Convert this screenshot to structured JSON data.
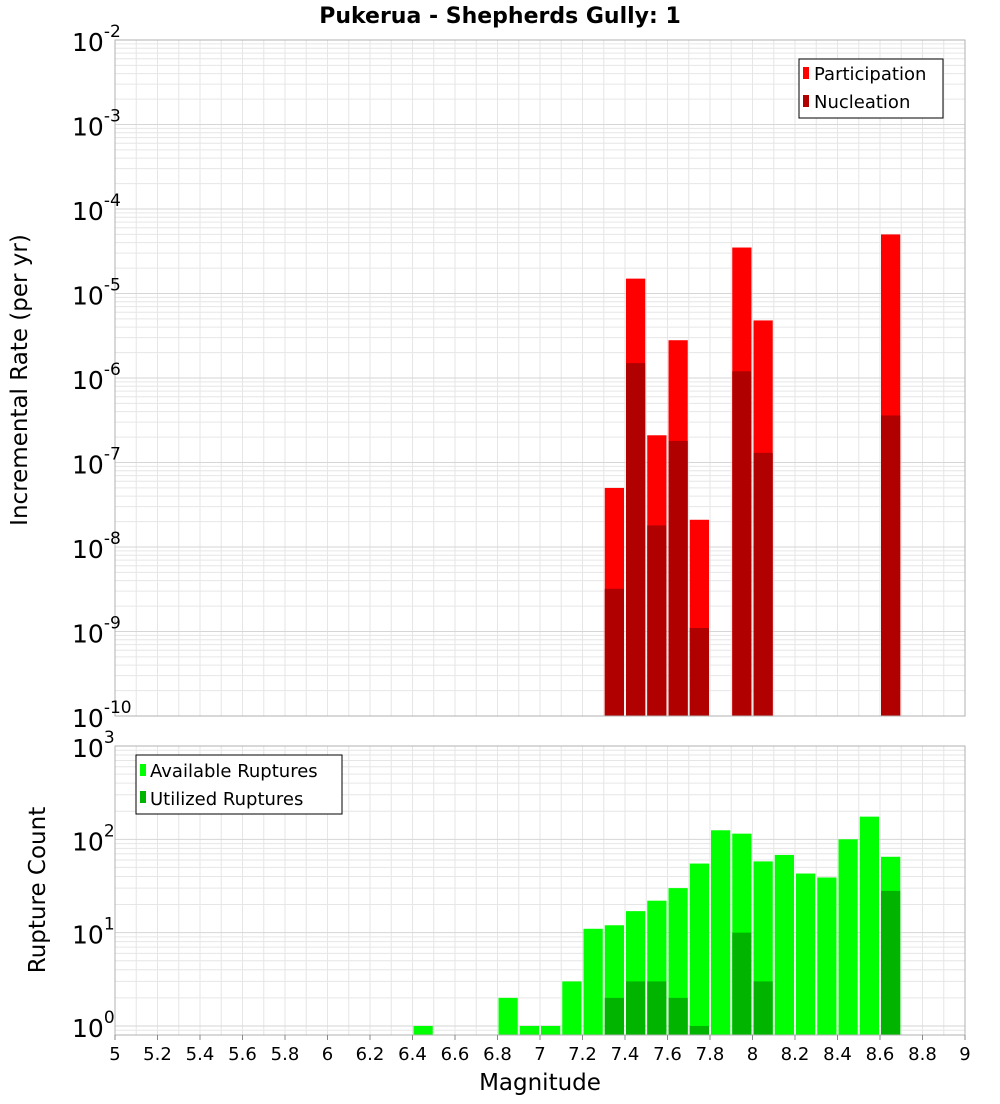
{
  "title": "Pukerua - Shepherds Gully: 1",
  "colors": {
    "participation": "#ff0000",
    "nucleation": "#b00000",
    "available": "#00ff00",
    "utilized": "#00b400",
    "grid": "#e6e6e6",
    "frame": "#b0b0b0"
  },
  "chart_data": [
    {
      "type": "bar",
      "ylabel": "Incremental Rate (per yr)",
      "xlabel": "",
      "yscale": "log",
      "ylim": [
        1e-10,
        0.01
      ],
      "xlim": [
        5,
        9
      ],
      "y_tick_exponents": [
        -10,
        -9,
        -8,
        -7,
        -6,
        -5,
        -4,
        -3,
        -2
      ],
      "bar_width": 0.1,
      "legend": {
        "position": "top-right",
        "entries": [
          "Participation",
          "Nucleation"
        ]
      },
      "series": [
        {
          "name": "Participation",
          "x": [
            7.35,
            7.45,
            7.55,
            7.65,
            7.75,
            7.95,
            8.05,
            8.65
          ],
          "values": [
            5e-08,
            1.5e-05,
            2.1e-07,
            2.8e-06,
            2.1e-08,
            3.5e-05,
            4.8e-06,
            5e-05
          ]
        },
        {
          "name": "Nucleation",
          "x": [
            7.35,
            7.45,
            7.55,
            7.65,
            7.75,
            7.95,
            8.05,
            8.65
          ],
          "values": [
            3.2e-09,
            1.5e-06,
            1.8e-08,
            1.8e-07,
            1.1e-09,
            1.2e-06,
            1.3e-07,
            3.6e-07
          ]
        }
      ]
    },
    {
      "type": "bar",
      "ylabel": "Rupture Count",
      "xlabel": "Magnitude",
      "yscale": "log",
      "ylim": [
        0.8,
        1000
      ],
      "xlim": [
        5,
        9
      ],
      "y_tick_exponents": [
        0,
        1,
        2,
        3
      ],
      "x_ticks": [
        "5",
        "5.2",
        "5.4",
        "5.6",
        "5.8",
        "6",
        "6.2",
        "6.4",
        "6.6",
        "6.8",
        "7",
        "7.2",
        "7.4",
        "7.6",
        "7.8",
        "8",
        "8.2",
        "8.4",
        "8.6",
        "8.8",
        "9"
      ],
      "bar_width": 0.1,
      "legend": {
        "position": "top-left",
        "entries": [
          "Available Ruptures",
          "Utilized Ruptures"
        ]
      },
      "series": [
        {
          "name": "Available Ruptures",
          "x": [
            6.45,
            6.85,
            6.95,
            7.05,
            7.15,
            7.25,
            7.35,
            7.45,
            7.55,
            7.65,
            7.75,
            7.85,
            7.95,
            8.05,
            8.15,
            8.25,
            8.35,
            8.45,
            8.55,
            8.65
          ],
          "values": [
            1,
            2,
            1,
            1,
            3,
            11,
            12,
            17,
            22,
            30,
            55,
            125,
            115,
            58,
            68,
            43,
            39,
            100,
            175,
            65
          ]
        },
        {
          "name": "Utilized Ruptures",
          "x": [
            7.35,
            7.45,
            7.55,
            7.65,
            7.75,
            7.95,
            8.05,
            8.65
          ],
          "values": [
            2,
            3,
            3,
            2,
            1,
            10,
            3,
            28
          ]
        }
      ]
    }
  ]
}
